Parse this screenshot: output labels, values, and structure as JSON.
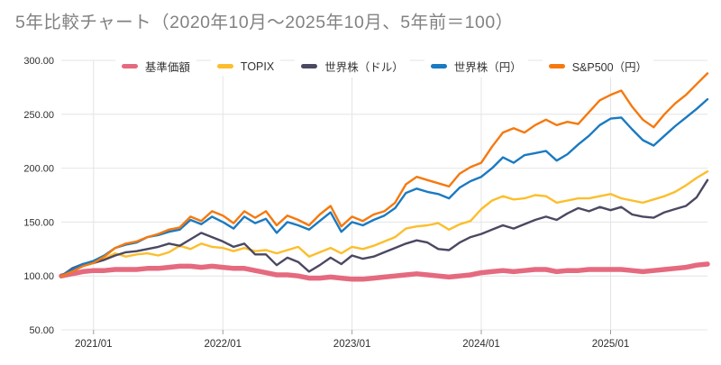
{
  "title": "5年比較チャート（2020年10月～2025年10月、5年前＝100）",
  "colors": {
    "fund_nav": "#e56a7f",
    "topix": "#fcbe2c",
    "world_usd": "#4b4862",
    "world_jpy": "#1a7ac2",
    "sp500_jpy": "#f5790f",
    "gridline": "#e4e4e4",
    "tick": "#9e9e9e",
    "title_text": "#828282",
    "axis_text": "#2e2e2e"
  },
  "chart_data": {
    "type": "line",
    "title": "5年比較チャート（2020年10月～2025年10月、5年前＝100）",
    "x_unit": "month",
    "x_start": "2020/10",
    "x_end": "2025/10",
    "points_count": 61,
    "baseline": 100,
    "ylim": [
      50,
      300
    ],
    "y_ticks": [
      50,
      100,
      150,
      200,
      250,
      300
    ],
    "y_tick_labels": [
      "50.00",
      "100.00",
      "150.00",
      "200.00",
      "250.00",
      "300.00"
    ],
    "x_tick_positions": [
      3,
      15,
      27,
      39,
      51
    ],
    "x_tick_labels": [
      "2021/01",
      "2022/01",
      "2023/01",
      "2024/01",
      "2025/01"
    ],
    "grid": true,
    "legend_position": "top",
    "series": [
      {
        "id": "fund-nav",
        "name": "基準価額",
        "color": "#e56a7f",
        "width": 5.5,
        "values": [
          100,
          102,
          104,
          105,
          105,
          106,
          106,
          106,
          107,
          107,
          108,
          109,
          109,
          108,
          109,
          108,
          107,
          107,
          105,
          103,
          101,
          101,
          100,
          98,
          98,
          99,
          98,
          97,
          97,
          98,
          99,
          100,
          101,
          102,
          101,
          100,
          99,
          100,
          101,
          103,
          104,
          105,
          104,
          105,
          106,
          106,
          104,
          105,
          105,
          106,
          106,
          106,
          106,
          105,
          104,
          105,
          106,
          107,
          108,
          110,
          111
        ]
      },
      {
        "id": "topix",
        "name": "TOPIX",
        "color": "#fcbe2c",
        "width": 2.4,
        "values": [
          100,
          105,
          110,
          112,
          116,
          121,
          118,
          120,
          121,
          119,
          122,
          128,
          125,
          130,
          127,
          126,
          123,
          126,
          123,
          124,
          121,
          124,
          127,
          118,
          122,
          126,
          121,
          127,
          125,
          128,
          132,
          136,
          144,
          146,
          147,
          149,
          143,
          148,
          151,
          162,
          170,
          174,
          171,
          172,
          175,
          174,
          168,
          170,
          172,
          172,
          174,
          176,
          172,
          170,
          168,
          171,
          174,
          178,
          184,
          191,
          197
        ]
      },
      {
        "id": "world-stocks-usd",
        "name": "世界株（ドル）",
        "color": "#4b4862",
        "width": 2.4,
        "values": [
          100,
          107,
          111,
          112,
          115,
          119,
          122,
          123,
          125,
          127,
          130,
          128,
          134,
          140,
          136,
          132,
          127,
          130,
          120,
          120,
          110,
          117,
          113,
          104,
          110,
          117,
          111,
          119,
          116,
          118,
          122,
          126,
          130,
          133,
          131,
          125,
          124,
          131,
          136,
          139,
          143,
          147,
          144,
          148,
          152,
          155,
          152,
          158,
          163,
          160,
          164,
          161,
          164,
          157,
          155,
          154,
          159,
          162,
          165,
          173,
          189
        ]
      },
      {
        "id": "world-stocks-jpy",
        "name": "世界株（円）",
        "color": "#1a7ac2",
        "width": 2.4,
        "values": [
          100,
          106,
          111,
          114,
          119,
          126,
          129,
          131,
          136,
          138,
          141,
          143,
          152,
          148,
          155,
          150,
          144,
          155,
          149,
          153,
          140,
          150,
          147,
          143,
          151,
          159,
          141,
          150,
          147,
          152,
          156,
          163,
          177,
          181,
          178,
          176,
          172,
          182,
          188,
          192,
          200,
          210,
          205,
          212,
          214,
          216,
          207,
          213,
          222,
          230,
          240,
          246,
          247,
          236,
          226,
          221,
          230,
          239,
          247,
          255,
          264
        ]
      },
      {
        "id": "sp500-jpy",
        "name": "S&P500（円）",
        "color": "#f5790f",
        "width": 2.4,
        "values": [
          100,
          104,
          109,
          112,
          118,
          126,
          130,
          132,
          136,
          139,
          143,
          145,
          155,
          151,
          160,
          156,
          149,
          160,
          154,
          160,
          147,
          156,
          152,
          147,
          157,
          165,
          146,
          155,
          151,
          157,
          160,
          168,
          185,
          192,
          189,
          186,
          183,
          195,
          201,
          205,
          220,
          233,
          237,
          233,
          240,
          245,
          240,
          243,
          241,
          252,
          263,
          268,
          272,
          257,
          245,
          238,
          250,
          260,
          268,
          278,
          288
        ]
      }
    ]
  }
}
